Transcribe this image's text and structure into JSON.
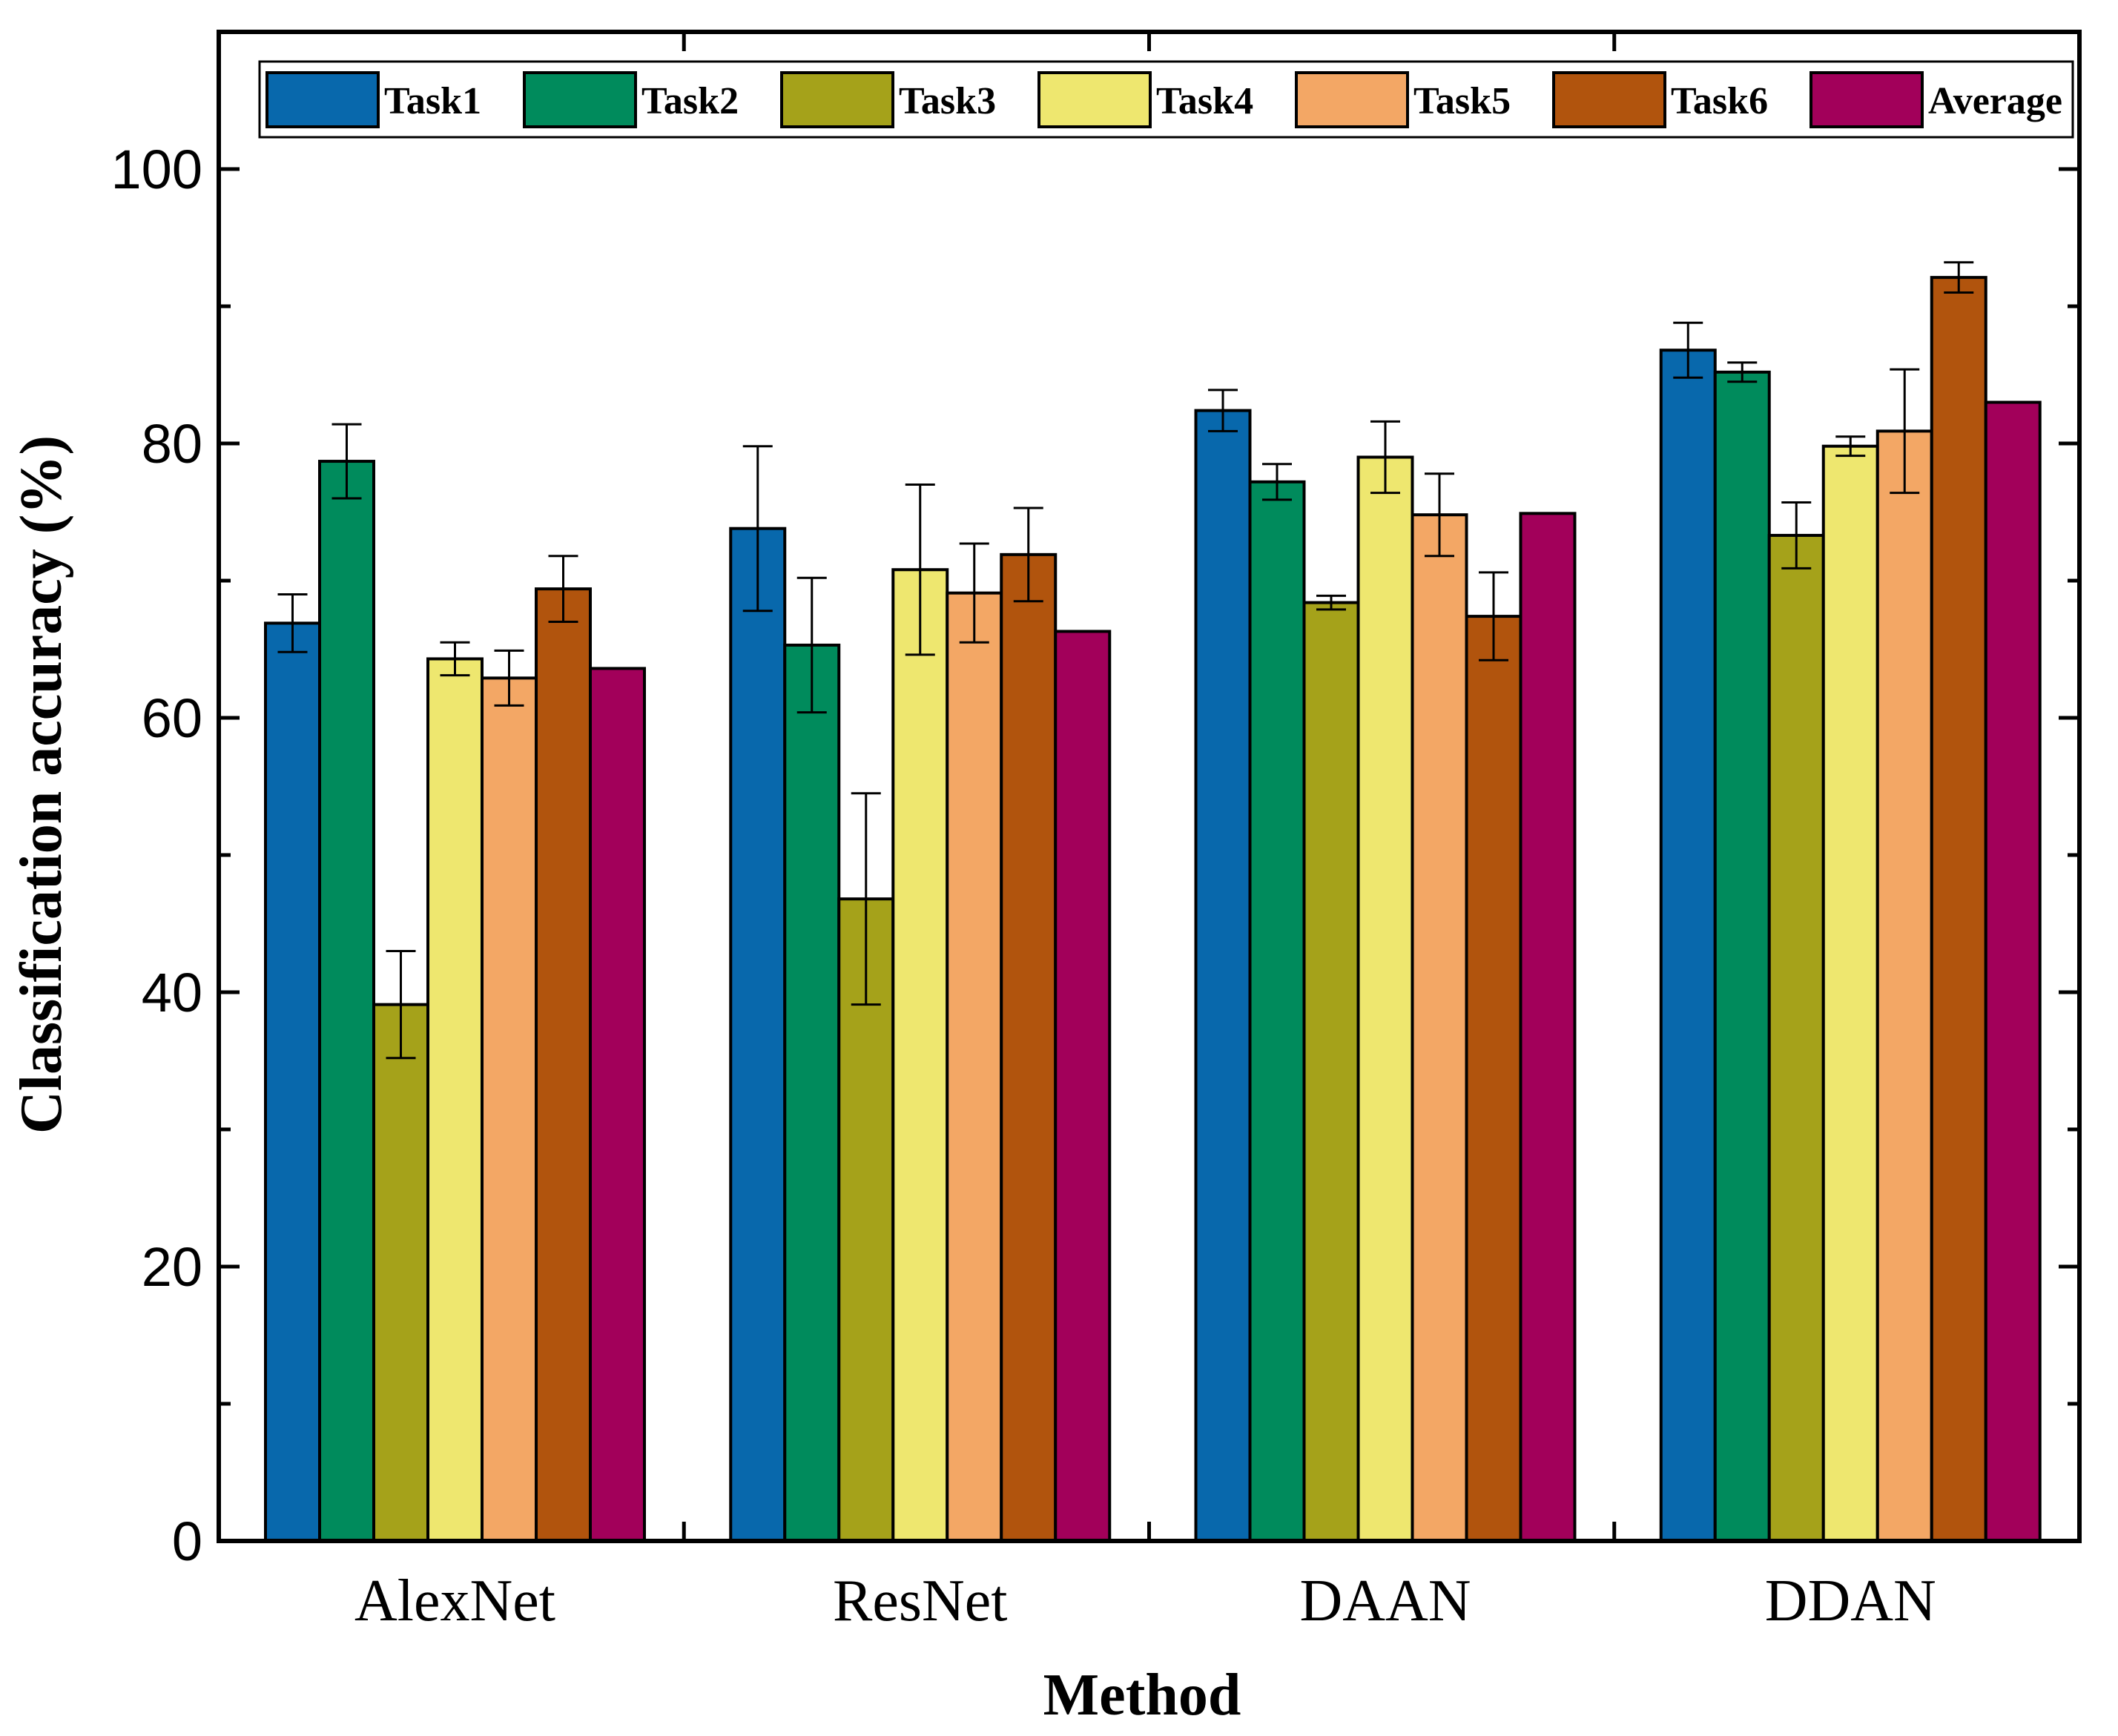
{
  "chart_data": {
    "type": "bar",
    "xlabel": "Method",
    "ylabel": "Classification accuracy (%)",
    "ylim": [
      0,
      110
    ],
    "yticks": [
      0,
      20,
      40,
      60,
      80,
      100
    ],
    "yminor_step": 10,
    "grid": false,
    "legend_position": "top",
    "categories": [
      "AlexNet",
      "ResNet",
      "DAAN",
      "DDAN"
    ],
    "series": [
      {
        "name": "Task1",
        "color": "#0868ac",
        "values": [
          66.9,
          73.8,
          82.4,
          86.8
        ],
        "errors": [
          2.1,
          6.0,
          1.5,
          2.0
        ]
      },
      {
        "name": "Task2",
        "color": "#008b5c",
        "values": [
          78.7,
          65.3,
          77.2,
          85.2
        ],
        "errors": [
          2.7,
          4.9,
          1.3,
          0.7
        ]
      },
      {
        "name": "Task3",
        "color": "#a5a21a",
        "values": [
          39.1,
          46.8,
          68.4,
          73.3
        ],
        "errors": [
          3.9,
          7.7,
          0.5,
          2.4
        ]
      },
      {
        "name": "Task4",
        "color": "#eee76f",
        "values": [
          64.3,
          70.8,
          79.0,
          79.8
        ],
        "errors": [
          1.2,
          6.2,
          2.6,
          0.7
        ]
      },
      {
        "name": "Task5",
        "color": "#f3a765",
        "values": [
          62.9,
          69.1,
          74.8,
          80.9
        ],
        "errors": [
          2.0,
          3.6,
          3.0,
          4.5
        ]
      },
      {
        "name": "Task6",
        "color": "#b1540d",
        "values": [
          69.4,
          71.9,
          67.4,
          92.1
        ],
        "errors": [
          2.4,
          3.4,
          3.2,
          1.1
        ]
      },
      {
        "name": "Average",
        "color": "#a2005a",
        "values": [
          63.6,
          66.3,
          74.9,
          83.0
        ],
        "errors": [
          0,
          0,
          0,
          0
        ]
      }
    ]
  }
}
